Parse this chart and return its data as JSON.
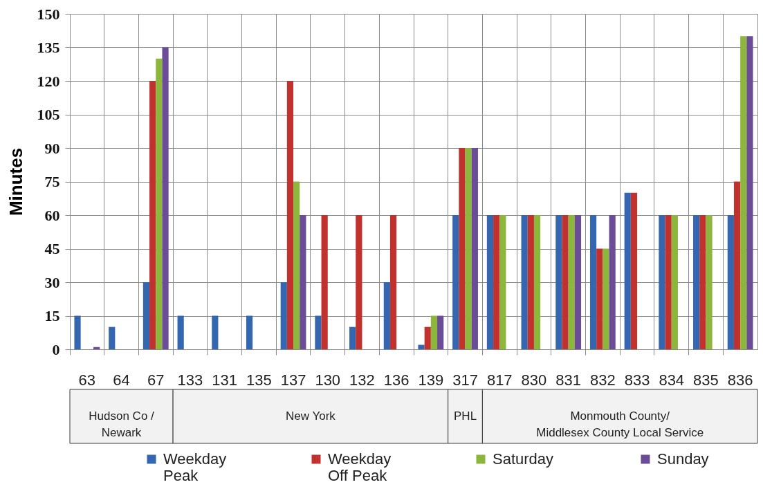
{
  "chart_data": {
    "type": "bar",
    "ylabel": "Minutes",
    "categories": [
      "63",
      "64",
      "67",
      "133",
      "131",
      "135",
      "137",
      "130",
      "132",
      "136",
      "139",
      "317",
      "817",
      "830",
      "831",
      "832",
      "833",
      "834",
      "835",
      "836"
    ],
    "series": [
      {
        "name": "Weekday Peak",
        "color": "#3567b0",
        "values": [
          15,
          10,
          30,
          15,
          15,
          15,
          30,
          15,
          10,
          30,
          2,
          60,
          60,
          60,
          60,
          60,
          70,
          60,
          60,
          60
        ]
      },
      {
        "name": "Weekday Off Peak",
        "color": "#c1312d",
        "values": [
          null,
          null,
          120,
          null,
          null,
          null,
          120,
          60,
          60,
          60,
          10,
          90,
          60,
          60,
          60,
          45,
          70,
          60,
          60,
          75
        ]
      },
      {
        "name": "Saturday",
        "color": "#8cb63c",
        "values": [
          null,
          null,
          130,
          null,
          null,
          null,
          75,
          null,
          null,
          null,
          15,
          90,
          60,
          60,
          60,
          45,
          null,
          60,
          60,
          140
        ]
      },
      {
        "name": "Sunday",
        "color": "#6b4c97",
        "values": [
          1,
          null,
          135,
          null,
          null,
          null,
          60,
          null,
          null,
          null,
          15,
          90,
          null,
          null,
          60,
          60,
          null,
          null,
          null,
          140
        ]
      }
    ],
    "ylim": [
      0,
      150
    ],
    "yticks": [
      0,
      15,
      30,
      45,
      60,
      75,
      90,
      105,
      120,
      135,
      150
    ],
    "grid": true,
    "legend": "bottom",
    "annotations": [
      "Hudson Co / Newark",
      "New York",
      "PHL",
      "Monmouth County/ Middlesex County Local Service"
    ]
  }
}
